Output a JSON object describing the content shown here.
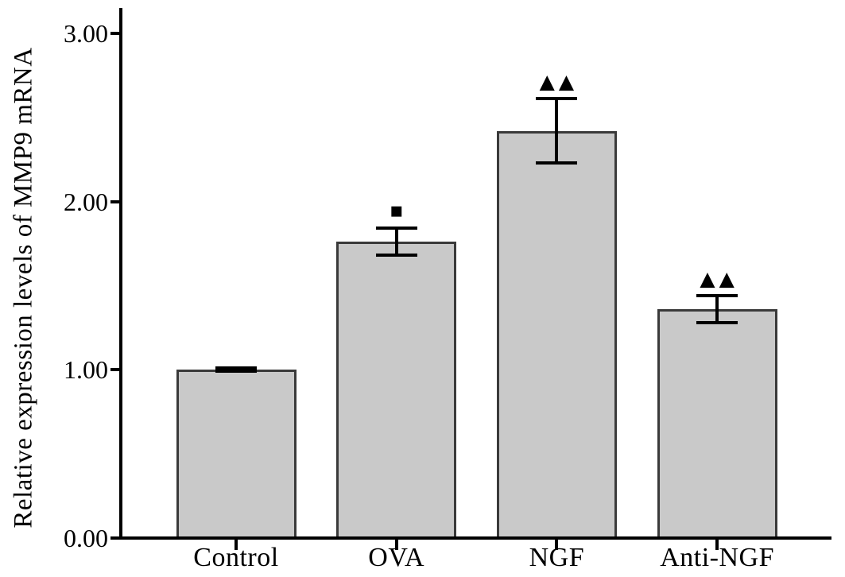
{
  "chart_data": {
    "type": "bar",
    "title": "",
    "xlabel": "",
    "ylabel": "Relative expression levels of MMP9 mRNA",
    "categories": [
      "Control",
      "OVA",
      "NGF",
      "Anti-NGF"
    ],
    "values": [
      1.0,
      1.76,
      2.42,
      1.36
    ],
    "error_bars": [
      0.01,
      0.08,
      0.19,
      0.08
    ],
    "significance_marks": [
      "",
      "▪",
      "▲▲",
      "▲▲"
    ],
    "yticks": [
      0.0,
      1.0,
      2.0,
      3.0
    ],
    "ytick_labels": [
      "0.00",
      "1.00",
      "2.00",
      "3.00"
    ],
    "ylim": [
      0,
      3.15
    ],
    "grid": false,
    "legend": "none",
    "bar_fill_color": "#c9c9c9",
    "bar_border_color": "#3a3a3a",
    "axis_color": "#000000"
  }
}
